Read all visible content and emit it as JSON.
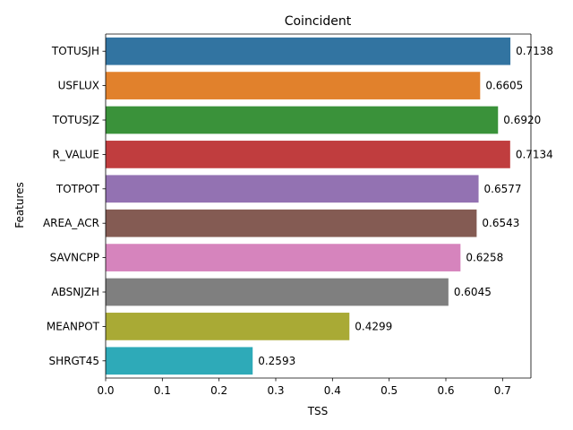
{
  "chart_data": {
    "type": "bar",
    "orientation": "horizontal",
    "title": "Coincident",
    "xlabel": "TSS",
    "ylabel": "Features",
    "categories": [
      "TOTUSJH",
      "USFLUX",
      "TOTUSJZ",
      "R_VALUE",
      "TOTPOT",
      "AREA_ACR",
      "SAVNCPP",
      "ABSNJZH",
      "MEANPOT",
      "SHRGT45"
    ],
    "values": [
      0.7138,
      0.6605,
      0.692,
      0.7134,
      0.6577,
      0.6543,
      0.6258,
      0.6045,
      0.4299,
      0.2593
    ],
    "value_labels": [
      "0.7138",
      "0.6605",
      "0.6920",
      "0.7134",
      "0.6577",
      "0.6543",
      "0.6258",
      "0.6045",
      "0.4299",
      "0.2593"
    ],
    "colors": [
      "#3274a1",
      "#e1812c",
      "#3a923a",
      "#c03d3e",
      "#9372b2",
      "#845b53",
      "#d684bd",
      "#7f7f7f",
      "#a9aa35",
      "#2eaab8"
    ],
    "xlim": [
      0,
      0.75
    ],
    "xticks": [
      "0.0",
      "0.1",
      "0.2",
      "0.3",
      "0.4",
      "0.5",
      "0.6",
      "0.7"
    ],
    "grid": false,
    "legend": "none"
  }
}
